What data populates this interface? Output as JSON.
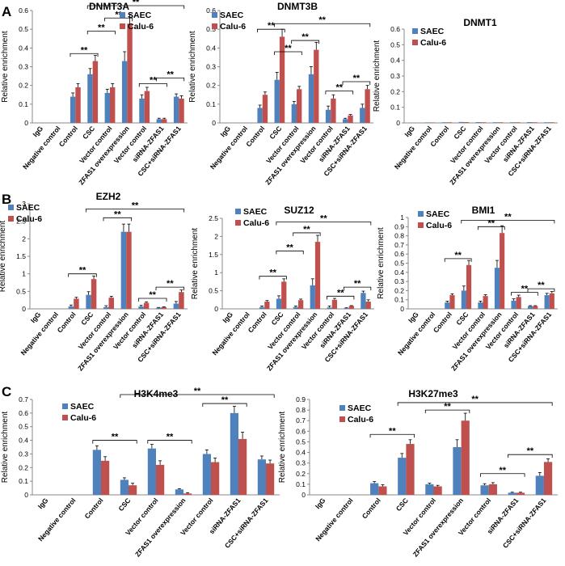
{
  "panel_labels": [
    "A",
    "B",
    "C"
  ],
  "colors": {
    "saec": "#4f81bd",
    "calu": "#c0504d",
    "axis": "#888888",
    "text": "#000000"
  },
  "sig_label": "**",
  "chart_data": [
    {
      "id": "dnmt3a",
      "type": "bar",
      "title": "DNMT3A",
      "panel": "A",
      "ylabel": "Relative enrichment",
      "ylim": [
        0,
        0.6
      ],
      "yticks": [
        "0",
        "0.1",
        "0.2",
        "0.3",
        "0.4",
        "0.5",
        "0.6"
      ],
      "categories": [
        "IgG",
        "Negative control",
        "Control",
        "CSC",
        "Vector control",
        "ZFAS1 overexpression",
        "Vector control",
        "siRNA-ZFAS1",
        "CSC+siRNA-ZFAS1"
      ],
      "legend": [
        "SAEC",
        "Calu-6"
      ],
      "series": [
        {
          "name": "SAEC",
          "values": [
            0,
            0,
            0.14,
            0.26,
            0.16,
            0.33,
            0.13,
            0.02,
            0.14
          ]
        },
        {
          "name": "Calu-6",
          "values": [
            0,
            0,
            0.19,
            0.33,
            0.19,
            0.53,
            0.17,
            0.02,
            0.13
          ]
        }
      ],
      "errors": [
        0,
        0,
        0.02,
        0.03,
        0.02,
        0.05,
        0.02,
        0.005,
        0.015
      ],
      "annotations": [
        {
          "text": "**",
          "a": 2,
          "b": 3,
          "y": 0.37
        },
        {
          "text": "**",
          "a": 3,
          "b": 4,
          "y": 0.49
        },
        {
          "text": "**",
          "a": 4,
          "b": 5,
          "y": 0.56
        },
        {
          "text": "**",
          "a": 6,
          "b": 7,
          "y": 0.21
        },
        {
          "text": "**",
          "a": 7,
          "b": 8,
          "y": 0.24
        },
        {
          "text": "**",
          "a": 3,
          "b": 8,
          "y": 0.65
        }
      ]
    },
    {
      "id": "dnmt3b",
      "type": "bar",
      "title": "DNMT3B",
      "panel": "A",
      "ylabel": "Relative enrichment",
      "ylim": [
        0,
        0.6
      ],
      "yticks": [
        "0",
        "0.1",
        "0.2",
        "0.3",
        "0.4",
        "0.5",
        "0.6"
      ],
      "categories": [
        "IgG",
        "Negative control",
        "Control",
        "CSC",
        "Vector control",
        "ZFAS1 overexpression",
        "Vector control",
        "siRNA-ZFAS1",
        "CSC+siRNA-ZFAS1"
      ],
      "legend": [
        "SAEC",
        "Calu-6"
      ],
      "series": [
        {
          "name": "SAEC",
          "values": [
            0,
            0,
            0.08,
            0.23,
            0.1,
            0.26,
            0.07,
            0.02,
            0.08
          ]
        },
        {
          "name": "Calu-6",
          "values": [
            0,
            0,
            0.15,
            0.46,
            0.18,
            0.39,
            0.13,
            0.04,
            0.18
          ]
        }
      ],
      "errors": [
        0,
        0,
        0.015,
        0.04,
        0.015,
        0.04,
        0.02,
        0.005,
        0.02
      ],
      "annotations": [
        {
          "text": "**",
          "a": 2,
          "b": 3,
          "y": 0.5
        },
        {
          "text": "**",
          "a": 4,
          "b": 5,
          "y": 0.44
        },
        {
          "text": "**",
          "a": 3,
          "b": 4,
          "y": 0.38
        },
        {
          "text": "**",
          "a": 6,
          "b": 7,
          "y": 0.17
        },
        {
          "text": "**",
          "a": 7,
          "b": 8,
          "y": 0.22
        },
        {
          "text": "**",
          "a": 3,
          "b": 8,
          "y": 0.53
        }
      ]
    },
    {
      "id": "dnmt1",
      "type": "bar",
      "title": "DNMT1",
      "panel": "A",
      "ylabel": "Relative enrichment",
      "ylim": [
        0,
        0.6
      ],
      "yticks": [
        "0",
        "0.1",
        "0.2",
        "0.3",
        "0.4",
        "0.5",
        "0.6"
      ],
      "categories": [
        "IgG",
        "Negative control",
        "Control",
        "CSC",
        "Vector control",
        "ZFAS1 overexpression",
        "Vector control",
        "siRNA-ZFAS1",
        "CSC+siRNA-ZFAS1"
      ],
      "legend": [
        "SAEC",
        "Calu-6"
      ],
      "series": [
        {
          "name": "SAEC",
          "values": [
            0,
            0.003,
            0.004,
            0.006,
            0.005,
            0.004,
            0.004,
            0.005,
            0.004
          ]
        },
        {
          "name": "Calu-6",
          "values": [
            0,
            0.003,
            0.004,
            0.005,
            0.004,
            0.004,
            0.004,
            0.004,
            0.004
          ]
        }
      ],
      "errors": [
        0,
        0,
        0,
        0,
        0,
        0,
        0,
        0,
        0
      ],
      "annotations": []
    },
    {
      "id": "ezh2",
      "type": "bar",
      "title": "EZH2",
      "panel": "B",
      "ylabel": "Relative enrichment",
      "ylim": [
        0,
        3
      ],
      "yticks": [
        "0",
        "0.5",
        "1",
        "1.5",
        "2",
        "2.5",
        "3"
      ],
      "categories": [
        "IgG",
        "Negative control",
        "Control",
        "CSC",
        "Vector control",
        "ZFAS1 overexpression",
        "Vector control",
        "siRNA-ZFAS1",
        "CSC+siRNA-ZFAS1"
      ],
      "legend": [
        "SAEC",
        "Calu-6"
      ],
      "series": [
        {
          "name": "SAEC",
          "values": [
            0,
            0,
            0.07,
            0.4,
            0.05,
            2.2,
            0.07,
            0.03,
            0.15
          ]
        },
        {
          "name": "Calu-6",
          "values": [
            0,
            0,
            0.29,
            0.85,
            0.32,
            2.2,
            0.17,
            0.05,
            0.48
          ]
        }
      ],
      "errors": [
        0,
        0,
        0.04,
        0.09,
        0.04,
        0.22,
        0.03,
        0.01,
        0.06
      ],
      "annotations": [
        {
          "text": "**",
          "a": 2,
          "b": 3,
          "y": 1.0
        },
        {
          "text": "**",
          "a": 4,
          "b": 5,
          "y": 2.6
        },
        {
          "text": "**",
          "a": 6,
          "b": 7,
          "y": 0.3
        },
        {
          "text": "**",
          "a": 7,
          "b": 8,
          "y": 0.62
        },
        {
          "text": "**",
          "a": 3,
          "b": 8,
          "y": 2.85
        }
      ]
    },
    {
      "id": "suz12",
      "type": "bar",
      "title": "SUZ12",
      "panel": "B",
      "ylabel": "Relative enrichment",
      "ylim": [
        0,
        2.5
      ],
      "yticks": [
        "0",
        "0.5",
        "1",
        "1.5",
        "2",
        "2.5"
      ],
      "categories": [
        "IgG",
        "Negative control",
        "Control",
        "CSC",
        "Vector control",
        "ZFAS1 overexpression",
        "Vector control",
        "siRNA-ZFAS1",
        "CSC+siRNA-ZFAS1"
      ],
      "legend": [
        "SAEC",
        "Calu-6"
      ],
      "series": [
        {
          "name": "SAEC",
          "values": [
            0,
            0,
            0.05,
            0.28,
            0.05,
            0.65,
            0.04,
            0.02,
            0.44
          ]
        },
        {
          "name": "Calu-6",
          "values": [
            0,
            0,
            0.2,
            0.75,
            0.24,
            1.85,
            0.25,
            0.08,
            0.2
          ]
        }
      ],
      "errors": [
        0,
        0,
        0.03,
        0.08,
        0.03,
        0.18,
        0.04,
        0.01,
        0.05
      ],
      "annotations": [
        {
          "text": "**",
          "a": 2,
          "b": 3,
          "y": 0.9
        },
        {
          "text": "**",
          "a": 4,
          "b": 5,
          "y": 2.1
        },
        {
          "text": "**",
          "a": 3,
          "b": 4,
          "y": 1.6
        },
        {
          "text": "**",
          "a": 6,
          "b": 7,
          "y": 0.35
        },
        {
          "text": "**",
          "a": 7,
          "b": 8,
          "y": 0.6
        },
        {
          "text": "**",
          "a": 3,
          "b": 8,
          "y": 2.4
        }
      ]
    },
    {
      "id": "bmi1",
      "type": "bar",
      "title": "BMI1",
      "panel": "B",
      "ylabel": "Relative enrichment",
      "ylim": [
        0,
        1
      ],
      "yticks": [
        "0",
        "0.1",
        "0.2",
        "0.3",
        "0.4",
        "0.5",
        "0.6",
        "0.7",
        "0.8",
        "0.9",
        "1"
      ],
      "categories": [
        "IgG",
        "Negative control",
        "Control",
        "CSC",
        "Vector control",
        "ZFAS1 overexpression",
        "Vector control",
        "siRNA-ZFAS1",
        "CSC+siRNA-ZFAS1"
      ],
      "legend": [
        "SAEC",
        "Calu-6"
      ],
      "series": [
        {
          "name": "SAEC",
          "values": [
            0,
            0,
            0.07,
            0.2,
            0.07,
            0.45,
            0.09,
            0.03,
            0.15
          ]
        },
        {
          "name": "Calu-6",
          "values": [
            0,
            0,
            0.15,
            0.48,
            0.14,
            0.83,
            0.13,
            0.03,
            0.17
          ]
        }
      ],
      "errors": [
        0,
        0,
        0.015,
        0.05,
        0.015,
        0.08,
        0.02,
        0.005,
        0.02
      ],
      "annotations": [
        {
          "text": "**",
          "a": 2,
          "b": 3,
          "y": 0.55
        },
        {
          "text": "**",
          "a": 4,
          "b": 5,
          "y": 0.9
        },
        {
          "text": "**",
          "a": 6,
          "b": 7,
          "y": 0.18
        },
        {
          "text": "**",
          "a": 7,
          "b": 8,
          "y": 0.22
        },
        {
          "text": "**",
          "a": 3,
          "b": 8,
          "y": 0.97
        }
      ]
    },
    {
      "id": "h3k4me3",
      "type": "bar",
      "title": "H3K4me3",
      "panel": "C",
      "ylabel": "Relative enrichment",
      "ylim": [
        0,
        0.7
      ],
      "yticks": [
        "0",
        "0.1",
        "0.2",
        "0.3",
        "0.4",
        "0.5",
        "0.6",
        "0.7"
      ],
      "categories": [
        "IgG",
        "Negative control",
        "Control",
        "CSC",
        "Vector control",
        "ZFAS1 overexpression",
        "Vector control",
        "siRNA-ZFAS1",
        "CSC+siRNA-ZFAS1"
      ],
      "legend": [
        "SAEC",
        "Calu-6"
      ],
      "series": [
        {
          "name": "SAEC",
          "values": [
            0,
            0,
            0.33,
            0.11,
            0.34,
            0.04,
            0.3,
            0.6,
            0.26
          ]
        },
        {
          "name": "Calu-6",
          "values": [
            0,
            0,
            0.25,
            0.07,
            0.22,
            0.01,
            0.24,
            0.41,
            0.23
          ]
        }
      ],
      "errors": [
        0,
        0,
        0.03,
        0.015,
        0.03,
        0.005,
        0.03,
        0.05,
        0.025
      ],
      "annotations": [
        {
          "text": "**",
          "a": 2,
          "b": 3,
          "y": 0.4
        },
        {
          "text": "**",
          "a": 4,
          "b": 5,
          "y": 0.4
        },
        {
          "text": "**",
          "a": 6,
          "b": 7,
          "y": 0.67
        },
        {
          "text": "**",
          "a": 3,
          "b": 8,
          "y": 0.76
        }
      ]
    },
    {
      "id": "h3k27me3",
      "type": "bar",
      "title": "H3K27me3",
      "panel": "C",
      "ylabel": "Relative enrichment",
      "ylim": [
        0,
        0.9
      ],
      "yticks": [
        "0",
        "0.1",
        "0.2",
        "0.3",
        "0.4",
        "0.5",
        "0.6",
        "0.7",
        "0.8",
        "0.9"
      ],
      "categories": [
        "IgG",
        "Negative control",
        "Control",
        "CSC",
        "Vector control",
        "ZFAS1 overexpression",
        "Vector control",
        "siRNA-ZFAS1",
        "CSC+siRNA-ZFAS1"
      ],
      "legend": [
        "SAEC",
        "Calu-6"
      ],
      "series": [
        {
          "name": "SAEC",
          "values": [
            0,
            0,
            0.11,
            0.35,
            0.1,
            0.45,
            0.09,
            0.02,
            0.18
          ]
        },
        {
          "name": "Calu-6",
          "values": [
            0,
            0,
            0.08,
            0.48,
            0.08,
            0.7,
            0.1,
            0.02,
            0.31
          ]
        }
      ],
      "errors": [
        0,
        0,
        0.015,
        0.04,
        0.01,
        0.07,
        0.015,
        0.005,
        0.03
      ],
      "annotations": [
        {
          "text": "**",
          "a": 2,
          "b": 3,
          "y": 0.57
        },
        {
          "text": "**",
          "a": 4,
          "b": 5,
          "y": 0.8
        },
        {
          "text": "**",
          "a": 6,
          "b": 7,
          "y": 0.2
        },
        {
          "text": "**",
          "a": 7,
          "b": 8,
          "y": 0.38
        },
        {
          "text": "**",
          "a": 3,
          "b": 8,
          "y": 0.87
        }
      ]
    }
  ]
}
